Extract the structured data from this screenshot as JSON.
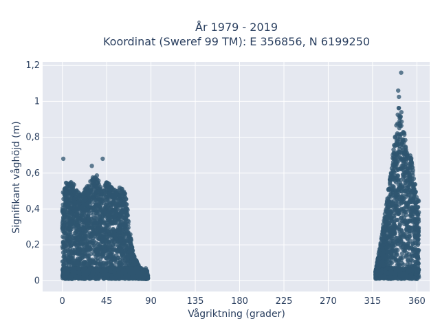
{
  "chart_data": {
    "type": "scatter",
    "title_line1": "År 1979 - 2019",
    "title_line2": "Koordinat (Sweref 99 TM): E 356856, N 6199250",
    "xlabel": "Vågriktning (grader)",
    "ylabel": "Signifikant våghöjd (m)",
    "xlim": [
      -20,
      373
    ],
    "ylim": [
      -0.06,
      1.22
    ],
    "x_ticks": [
      0,
      45,
      90,
      135,
      180,
      225,
      270,
      315,
      360
    ],
    "x_tick_labels": [
      "0",
      "45",
      "90",
      "135",
      "180",
      "225",
      "270",
      "315",
      "360"
    ],
    "y_ticks": [
      0,
      0.2,
      0.4,
      0.6,
      0.8,
      1.0,
      1.2
    ],
    "y_tick_labels": [
      "0",
      "0,2",
      "0,4",
      "0,6",
      "0,8",
      "1",
      "1,2"
    ],
    "grid": true,
    "marker_color": "#2f5570",
    "background_color": "#e5e8f0",
    "clusters": [
      {
        "x_range": [
          0,
          87
        ],
        "y_max_approx": 0.57,
        "envelope": [
          [
            0,
            0.55
          ],
          [
            5,
            0.55
          ],
          [
            10,
            0.56
          ],
          [
            15,
            0.5
          ],
          [
            20,
            0.48
          ],
          [
            25,
            0.53
          ],
          [
            30,
            0.58
          ],
          [
            35,
            0.6
          ],
          [
            40,
            0.5
          ],
          [
            45,
            0.55
          ],
          [
            50,
            0.53
          ],
          [
            55,
            0.5
          ],
          [
            60,
            0.53
          ],
          [
            65,
            0.47
          ],
          [
            68,
            0.3
          ],
          [
            72,
            0.15
          ],
          [
            78,
            0.08
          ],
          [
            85,
            0.03
          ]
        ]
      },
      {
        "x_range": [
          318,
          362
        ],
        "y_max_approx": 1.16,
        "envelope": [
          [
            318,
            0.05
          ],
          [
            322,
            0.18
          ],
          [
            326,
            0.32
          ],
          [
            330,
            0.46
          ],
          [
            334,
            0.64
          ],
          [
            338,
            0.82
          ],
          [
            340,
            0.9
          ],
          [
            342,
            1.05
          ],
          [
            344,
            0.95
          ],
          [
            346,
            0.88
          ],
          [
            348,
            0.8
          ],
          [
            350,
            0.72
          ],
          [
            354,
            0.7
          ],
          [
            356,
            0.62
          ],
          [
            358,
            0.55
          ],
          [
            360,
            0.45
          ]
        ]
      }
    ],
    "outliers": [
      {
        "x": 1,
        "y": 0.68
      },
      {
        "x": 41,
        "y": 0.68
      },
      {
        "x": 30,
        "y": 0.64
      },
      {
        "x": 344,
        "y": 1.16
      },
      {
        "x": 341,
        "y": 1.06
      }
    ]
  }
}
